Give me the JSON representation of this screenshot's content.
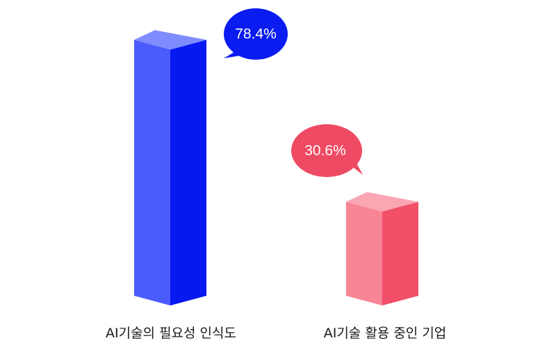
{
  "chart_data": {
    "type": "bar",
    "categories": [
      "AI기술의 필요성 인식도",
      "AI기술 활용 중인 기업"
    ],
    "values": [
      78.4,
      30.6
    ],
    "value_labels": [
      "78.4%",
      "30.6%"
    ],
    "ylim": [
      0,
      100
    ],
    "grid": false,
    "colors": {
      "blue_front": "#4b5cff",
      "blue_side": "#0718f0",
      "blue_top": "#7f8cff",
      "red_front": "#f78596",
      "red_side": "#f24f68",
      "red_top": "#fba6b3",
      "blue_bubble": "#0a1cf0",
      "red_bubble": "#ef4a63"
    }
  }
}
